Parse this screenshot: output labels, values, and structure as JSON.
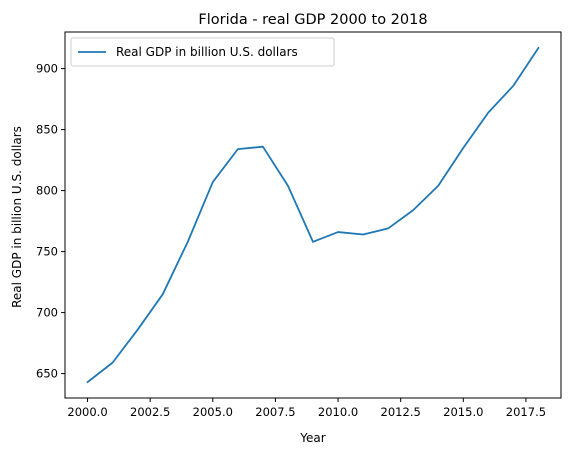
{
  "chart_data": {
    "type": "line",
    "title": "Florida - real GDP 2000 to 2018",
    "xlabel": "Year",
    "ylabel": "Real GDP in billion U.S. dollars",
    "xlim": [
      1999.1,
      2018.9
    ],
    "ylim": [
      630,
      930
    ],
    "x_ticks": [
      2000,
      2002.5,
      2005,
      2007.5,
      2010,
      2012.5,
      2015,
      2017.5
    ],
    "x_tick_labels": [
      "2000.0",
      "2002.5",
      "2005.0",
      "2007.5",
      "2010.0",
      "2012.5",
      "2015.0",
      "2017.5"
    ],
    "y_ticks": [
      650,
      700,
      750,
      800,
      850,
      900
    ],
    "y_tick_labels": [
      "650",
      "700",
      "750",
      "800",
      "850",
      "900"
    ],
    "grid": false,
    "legend_position": "top-left",
    "series": [
      {
        "name": "Real GDP in billion U.S. dollars",
        "color": "#1f77b4",
        "x": [
          2000,
          2001,
          2002,
          2003,
          2004,
          2005,
          2006,
          2007,
          2008,
          2009,
          2010,
          2011,
          2012,
          2013,
          2014,
          2015,
          2016,
          2017,
          2018
        ],
        "y": [
          643,
          659,
          686,
          715,
          758,
          807,
          834,
          836,
          804,
          758,
          766,
          764,
          769,
          784,
          804,
          835,
          864,
          886,
          917
        ]
      }
    ]
  }
}
